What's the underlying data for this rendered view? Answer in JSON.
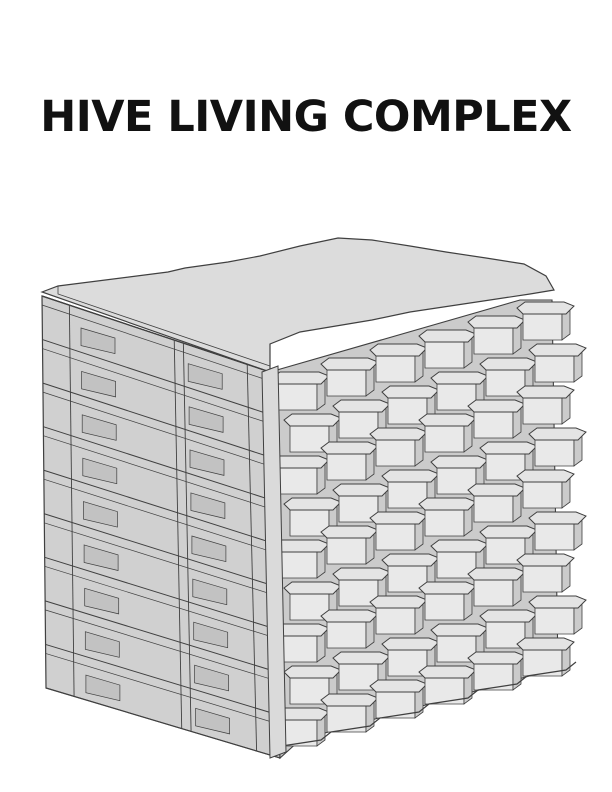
{
  "title": "HIVE LIVING COMPLEX",
  "model": {
    "floors": 9,
    "bays_per_floor": 6,
    "colors": {
      "background": "#ffffff",
      "roof": "#dcdcdc",
      "left_wall": "#d0d0d0",
      "slab": "#e4e4e4",
      "cell_wall": "#cbcbcb",
      "glass": "#e9e9e9",
      "line": "#404040",
      "title": "#111111"
    }
  }
}
